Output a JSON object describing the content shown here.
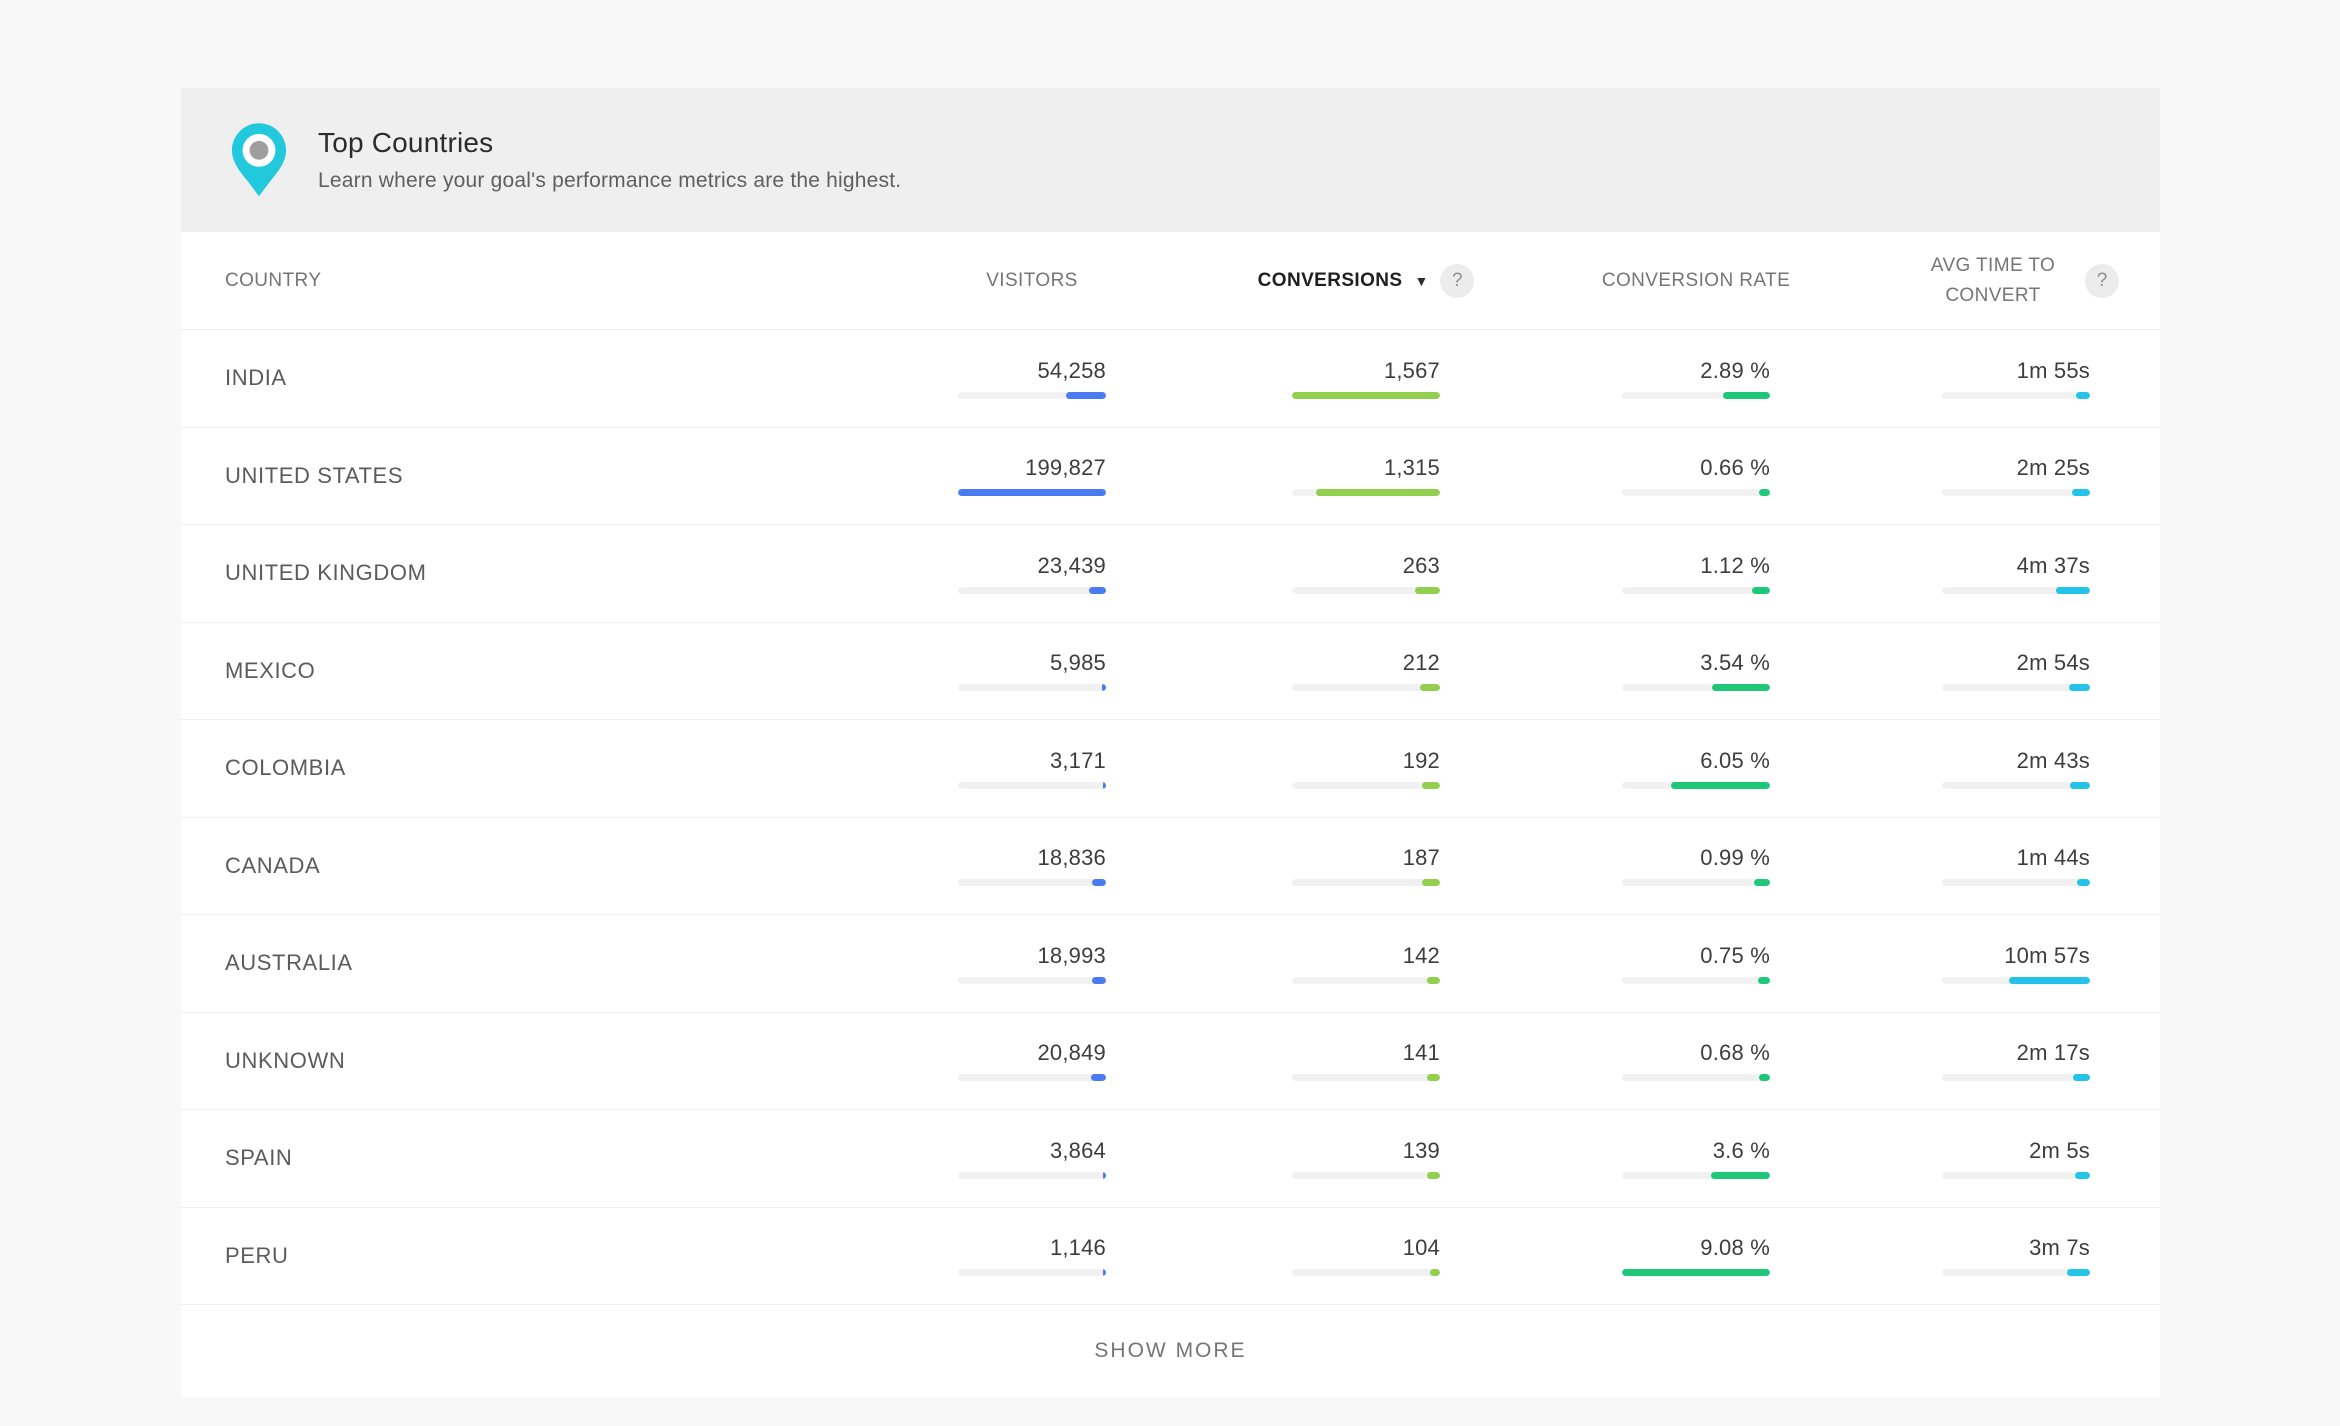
{
  "colors": {
    "visitors_bar": "#4a7bf3",
    "conversions_bar": "#92cf4e",
    "rate_bar": "#1fc878",
    "time_bar": "#23c4e8",
    "pin": "#22c9dd",
    "pin_dot": "#9e9e9e"
  },
  "header": {
    "title": "Top Countries",
    "subtitle": "Learn where your goal's performance metrics are the highest."
  },
  "table": {
    "columns": [
      {
        "label": "COUNTRY"
      },
      {
        "label": "VISITORS"
      },
      {
        "label": "CONVERSIONS",
        "sorted": true,
        "help": "?"
      },
      {
        "label": "CONVERSION RATE"
      },
      {
        "label": "AVG TIME TO CONVERT",
        "help": "?"
      }
    ],
    "rows": [
      {
        "country": "INDIA",
        "visitors": "54,258",
        "visitors_pct": 27.2,
        "conversions": "1,567",
        "conversions_pct": 100,
        "rate": "2.89 %",
        "rate_pct": 31.8,
        "time": "1m 55s",
        "time_pct": 9.6
      },
      {
        "country": "UNITED STATES",
        "visitors": "199,827",
        "visitors_pct": 100,
        "conversions": "1,315",
        "conversions_pct": 83.9,
        "rate": "0.66 %",
        "rate_pct": 7.3,
        "time": "2m 25s",
        "time_pct": 12.1
      },
      {
        "country": "UNITED KINGDOM",
        "visitors": "23,439",
        "visitors_pct": 11.7,
        "conversions": "263",
        "conversions_pct": 16.8,
        "rate": "1.12 %",
        "rate_pct": 12.3,
        "time": "4m 37s",
        "time_pct": 23.1
      },
      {
        "country": "MEXICO",
        "visitors": "5,985",
        "visitors_pct": 3.0,
        "conversions": "212",
        "conversions_pct": 13.5,
        "rate": "3.54 %",
        "rate_pct": 39.0,
        "time": "2m 54s",
        "time_pct": 14.5
      },
      {
        "country": "COLOMBIA",
        "visitors": "3,171",
        "visitors_pct": 1.6,
        "conversions": "192",
        "conversions_pct": 12.3,
        "rate": "6.05 %",
        "rate_pct": 66.6,
        "time": "2m 43s",
        "time_pct": 13.6
      },
      {
        "country": "CANADA",
        "visitors": "18,836",
        "visitors_pct": 9.4,
        "conversions": "187",
        "conversions_pct": 11.9,
        "rate": "0.99 %",
        "rate_pct": 10.9,
        "time": "1m 44s",
        "time_pct": 8.7
      },
      {
        "country": "AUSTRALIA",
        "visitors": "18,993",
        "visitors_pct": 9.5,
        "conversions": "142",
        "conversions_pct": 9.1,
        "rate": "0.75 %",
        "rate_pct": 8.3,
        "time": "10m 57s",
        "time_pct": 54.8
      },
      {
        "country": "UNKNOWN",
        "visitors": "20,849",
        "visitors_pct": 10.4,
        "conversions": "141",
        "conversions_pct": 9.0,
        "rate": "0.68 %",
        "rate_pct": 7.5,
        "time": "2m 17s",
        "time_pct": 11.4
      },
      {
        "country": "SPAIN",
        "visitors": "3,864",
        "visitors_pct": 1.9,
        "conversions": "139",
        "conversions_pct": 8.9,
        "rate": "3.6 %",
        "rate_pct": 39.6,
        "time": "2m 5s",
        "time_pct": 10.4
      },
      {
        "country": "PERU",
        "visitors": "1,146",
        "visitors_pct": 0.6,
        "conversions": "104",
        "conversions_pct": 6.6,
        "rate": "9.08 %",
        "rate_pct": 100,
        "time": "3m 7s",
        "time_pct": 15.6
      }
    ]
  },
  "footer": {
    "show_more": "SHOW MORE"
  }
}
